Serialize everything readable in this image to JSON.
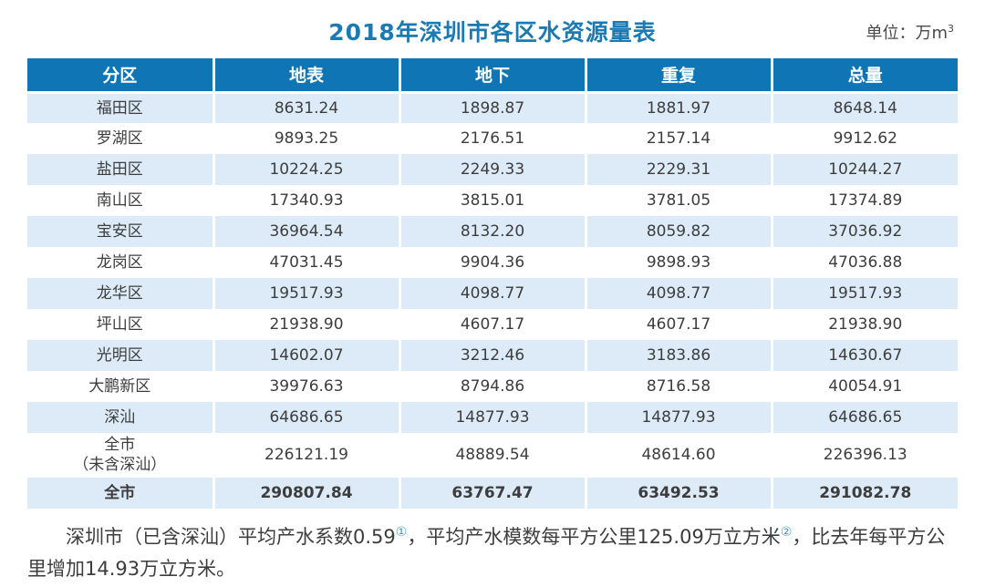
{
  "header": {
    "title": "2018年深圳市各区水资源量表",
    "unit_prefix": "单位：万m",
    "unit_exponent": "3"
  },
  "table": {
    "columns": [
      "分区",
      "地表",
      "地下",
      "重复",
      "总量"
    ],
    "rows": [
      {
        "name": "福田区",
        "values": [
          "8631.24",
          "1898.87",
          "1881.97",
          "8648.14"
        ]
      },
      {
        "name": "罗湖区",
        "values": [
          "9893.25",
          "2176.51",
          "2157.14",
          "9912.62"
        ]
      },
      {
        "name": "盐田区",
        "values": [
          "10224.25",
          "2249.33",
          "2229.31",
          "10244.27"
        ]
      },
      {
        "name": "南山区",
        "values": [
          "17340.93",
          "3815.01",
          "3781.05",
          "17374.89"
        ]
      },
      {
        "name": "宝安区",
        "values": [
          "36964.54",
          "8132.20",
          "8059.82",
          "37036.92"
        ]
      },
      {
        "name": "龙岗区",
        "values": [
          "47031.45",
          "9904.36",
          "9898.93",
          "47036.88"
        ]
      },
      {
        "name": "龙华区",
        "values": [
          "19517.93",
          "4098.77",
          "4098.77",
          "19517.93"
        ]
      },
      {
        "name": "坪山区",
        "values": [
          "21938.90",
          "4607.17",
          "4607.17",
          "21938.90"
        ]
      },
      {
        "name": "光明区",
        "values": [
          "14602.07",
          "3212.46",
          "3183.86",
          "14630.67"
        ]
      },
      {
        "name": "大鹏新区",
        "values": [
          "39976.63",
          "8794.86",
          "8716.58",
          "40054.91"
        ]
      },
      {
        "name": "深汕",
        "values": [
          "64686.65",
          "14877.93",
          "14877.93",
          "64686.65"
        ]
      },
      {
        "name": "全市",
        "name_line2": "（未含深汕）",
        "values": [
          "226121.19",
          "48889.54",
          "48614.60",
          "226396.13"
        ]
      },
      {
        "name": "全市",
        "values": [
          "290807.84",
          "63767.47",
          "63492.53",
          "291082.78"
        ]
      }
    ]
  },
  "footnote": {
    "segment1": "深圳市（已含深汕）平均产水系数0.59",
    "marker1": "①",
    "segment2": "，平均产水模数每平方公里125.09万立方米",
    "marker2": "②",
    "segment3": "，比去年每平方公里增加14.93万立方米。"
  },
  "colors": {
    "header_blue": "#0f75b4",
    "row_light_blue": "#dcebf7",
    "title_blue": "#1c7ab2",
    "marker_blue": "#3e9bd2",
    "text_dark": "#3d3d3d"
  },
  "chart_data": {
    "type": "table",
    "title": "2018年深圳市各区水资源量表",
    "unit": "万m3",
    "columns": [
      "分区",
      "地表",
      "地下",
      "重复",
      "总量"
    ],
    "rows": [
      [
        "福田区",
        8631.24,
        1898.87,
        1881.97,
        8648.14
      ],
      [
        "罗湖区",
        9893.25,
        2176.51,
        2157.14,
        9912.62
      ],
      [
        "盐田区",
        10224.25,
        2249.33,
        2229.31,
        10244.27
      ],
      [
        "南山区",
        17340.93,
        3815.01,
        3781.05,
        17374.89
      ],
      [
        "宝安区",
        36964.54,
        8132.2,
        8059.82,
        37036.92
      ],
      [
        "龙岗区",
        47031.45,
        9904.36,
        9898.93,
        47036.88
      ],
      [
        "龙华区",
        19517.93,
        4098.77,
        4098.77,
        19517.93
      ],
      [
        "坪山区",
        21938.9,
        4607.17,
        4607.17,
        21938.9
      ],
      [
        "光明区",
        14602.07,
        3212.46,
        3183.86,
        14630.67
      ],
      [
        "大鹏新区",
        39976.63,
        8794.86,
        8716.58,
        40054.91
      ],
      [
        "深汕",
        64686.65,
        14877.93,
        14877.93,
        64686.65
      ],
      [
        "全市（未含深汕）",
        226121.19,
        48889.54,
        48614.6,
        226396.13
      ],
      [
        "全市",
        290807.84,
        63767.47,
        63492.53,
        291082.78
      ]
    ],
    "annotations": "深圳市（已含深汕）平均产水系数0.59①，平均产水模数每平方公里125.09万立方米②，比去年每平方公里增加14.93万立方米。"
  }
}
